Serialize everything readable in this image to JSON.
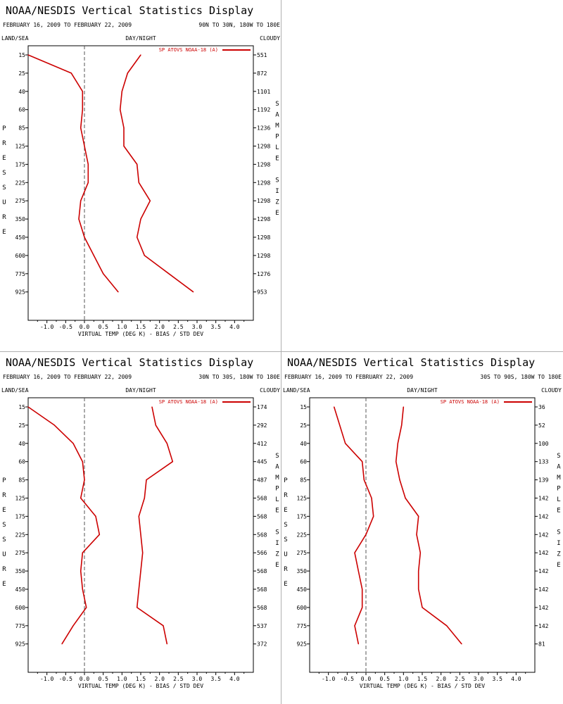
{
  "style": {
    "line_color": "#cc0000",
    "axis_color": "#000000",
    "zero_line_color": "#555555",
    "divider_color": "#b0b0b0"
  },
  "labels": {
    "left_top": "LAND/SEA",
    "center_top": "DAY/NIGHT",
    "right_top": "CLOUDY",
    "xlabel": "VIRTUAL TEMP (DEG K) - BIAS / STD DEV",
    "ylabel_chars": [
      "P",
      "R",
      "E",
      "S",
      "S",
      "U",
      "R",
      "E"
    ],
    "right_side_chars": [
      "S",
      "A",
      "M",
      "P",
      "L",
      "E",
      "",
      "S",
      "I",
      "Z",
      "E"
    ]
  },
  "chart_data": [
    {
      "type": "line",
      "title": "NOAA/NESDIS Vertical Statistics Display",
      "date_range": "FEBRUARY 16, 2009 TO FEBRUARY 22, 2009",
      "region": "90N TO 30N, 180W TO 180E",
      "legend": "SP ATOVS NOAA-18 (A)",
      "legend_position": "top-right",
      "pressure_levels": [
        "15",
        "25",
        "40",
        "60",
        "85",
        "125",
        "175",
        "225",
        "275",
        "350",
        "450",
        "600",
        "775",
        "925"
      ],
      "xticks": [
        "-1.0",
        "-0.5",
        "0.0",
        "0.5",
        "1.0",
        "1.5",
        "2.0",
        "2.5",
        "3.0",
        "3.5",
        "4.0"
      ],
      "xlim": [
        -1.5,
        4.5
      ],
      "sample_size": [
        "551",
        "872",
        "1101",
        "1192",
        "1236",
        "1298",
        "1298",
        "1298",
        "1298",
        "1298",
        "1298",
        "1298",
        "1276",
        "953"
      ],
      "series": [
        {
          "values": [
            -1.5,
            -0.35,
            -0.05,
            -0.05,
            -0.1,
            0.0,
            0.1,
            0.1,
            -0.1,
            -0.15,
            0.0,
            0.25,
            0.5,
            0.9
          ]
        },
        {
          "values": [
            1.5,
            1.15,
            1.0,
            0.95,
            1.05,
            1.05,
            1.4,
            1.45,
            1.75,
            1.5,
            1.4,
            1.6,
            2.25,
            2.9
          ]
        }
      ]
    },
    {
      "type": "line",
      "title": "NOAA/NESDIS Vertical Statistics Display",
      "date_range": "FEBRUARY 16, 2009 TO FEBRUARY 22, 2009",
      "region": "30N TO 30S, 180W TO 180E",
      "legend": "SP ATOVS NOAA-18 (A)",
      "legend_position": "top-right",
      "pressure_levels": [
        "15",
        "25",
        "40",
        "60",
        "85",
        "125",
        "175",
        "225",
        "275",
        "350",
        "450",
        "600",
        "775",
        "925"
      ],
      "xticks": [
        "-1.0",
        "-0.5",
        "0.0",
        "0.5",
        "1.0",
        "1.5",
        "2.0",
        "2.5",
        "3.0",
        "3.5",
        "4.0"
      ],
      "xlim": [
        -1.5,
        4.5
      ],
      "sample_size": [
        "174",
        "292",
        "412",
        "445",
        "487",
        "568",
        "568",
        "568",
        "566",
        "568",
        "568",
        "568",
        "537",
        "372"
      ],
      "series": [
        {
          "values": [
            -1.5,
            -0.8,
            -0.3,
            -0.05,
            0.0,
            -0.1,
            0.3,
            0.4,
            -0.05,
            -0.1,
            -0.05,
            0.05,
            -0.3,
            -0.6
          ]
        },
        {
          "values": [
            1.8,
            1.9,
            2.2,
            2.35,
            1.65,
            1.6,
            1.45,
            1.5,
            1.55,
            1.5,
            1.45,
            1.4,
            2.1,
            2.2
          ]
        }
      ]
    },
    {
      "type": "line",
      "title": "NOAA/NESDIS Vertical Statistics Display",
      "date_range": "FEBRUARY 16, 2009 TO FEBRUARY 22, 2009",
      "region": "30S TO 90S, 180W TO 180E",
      "legend": "SP ATOVS NOAA-18 (A)",
      "legend_position": "top-right",
      "pressure_levels": [
        "15",
        "25",
        "40",
        "60",
        "85",
        "125",
        "175",
        "225",
        "275",
        "350",
        "450",
        "600",
        "775",
        "925"
      ],
      "xticks": [
        "-1.0",
        "-0.5",
        "0.0",
        "0.5",
        "1.0",
        "1.5",
        "2.0",
        "2.5",
        "3.0",
        "3.5",
        "4.0"
      ],
      "xlim": [
        -1.5,
        4.5
      ],
      "sample_size": [
        "36",
        "52",
        "100",
        "133",
        "139",
        "142",
        "142",
        "142",
        "142",
        "142",
        "142",
        "142",
        "142",
        "81"
      ],
      "series": [
        {
          "values": [
            -0.85,
            -0.7,
            -0.55,
            -0.1,
            -0.05,
            0.15,
            0.2,
            0.0,
            -0.3,
            -0.2,
            -0.1,
            -0.1,
            -0.3,
            -0.2
          ]
        },
        {
          "values": [
            1.0,
            0.95,
            0.85,
            0.8,
            0.9,
            1.05,
            1.4,
            1.35,
            1.45,
            1.4,
            1.4,
            1.5,
            2.15,
            2.55
          ]
        }
      ]
    }
  ]
}
